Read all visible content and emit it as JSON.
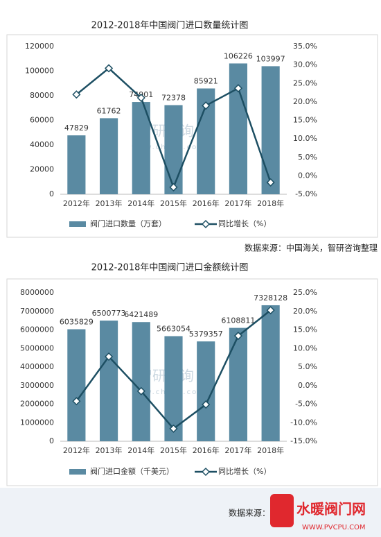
{
  "chart_data": [
    {
      "type": "combo",
      "title": "2012-2018年中国阀门进口数量统计图",
      "categories": [
        "2012年",
        "2013年",
        "2014年",
        "2015年",
        "2016年",
        "2017年",
        "2018年"
      ],
      "series": [
        {
          "name": "阀门进口数量（万套）",
          "type": "bar",
          "color": "#5a8aa2",
          "values": [
            47829,
            61762,
            74901,
            72378,
            85921,
            106226,
            103997
          ]
        },
        {
          "name": "同比增长（%）",
          "type": "line",
          "axis": "y2",
          "color": "#1d4f63",
          "values": [
            22.0,
            29.1,
            21.1,
            -3.1,
            19.0,
            23.7,
            -1.8
          ]
        }
      ],
      "ylim": [
        0,
        120000
      ],
      "yticks": [
        0,
        20000,
        40000,
        60000,
        80000,
        100000,
        120000
      ],
      "y2lim": [
        -5,
        35
      ],
      "y2ticks": [
        {
          "value": -5,
          "label": "-5.0%"
        },
        {
          "value": 0,
          "label": "0.0%"
        },
        {
          "value": 5,
          "label": "5.0%"
        },
        {
          "value": 10,
          "label": "10.0%"
        },
        {
          "value": 15,
          "label": "15.0%"
        },
        {
          "value": 20,
          "label": "20.0%"
        },
        {
          "value": 25,
          "label": "25.0%"
        },
        {
          "value": 30,
          "label": "30.0%"
        },
        {
          "value": 35,
          "label": "35.0%"
        }
      ],
      "grid": false,
      "legend": "bottom",
      "source": "数据来源：中国海关，智研咨询整理"
    },
    {
      "type": "combo",
      "title": "2012-2018年中国阀门进口金额统计图",
      "categories": [
        "2012年",
        "2013年",
        "2014年",
        "2015年",
        "2016年",
        "2017年",
        "2018年"
      ],
      "series": [
        {
          "name": "阀门进口金额（千美元）",
          "type": "bar",
          "color": "#5a8aa2",
          "values": [
            6035829,
            6500773,
            6421489,
            5663054,
            5379357,
            6108811,
            7328128
          ]
        },
        {
          "name": "同比增长（%）",
          "type": "line",
          "axis": "y2",
          "color": "#1d4f63",
          "values": [
            -4.2,
            7.8,
            -1.5,
            -11.6,
            -5.1,
            13.4,
            20.3
          ]
        }
      ],
      "ylim": [
        0,
        8000000
      ],
      "yticks": [
        0,
        1000000,
        2000000,
        3000000,
        4000000,
        5000000,
        6000000,
        7000000,
        8000000
      ],
      "y2lim": [
        -15,
        25
      ],
      "y2ticks": [
        {
          "value": -15,
          "label": "-15.0%"
        },
        {
          "value": -10,
          "label": "-10.0%"
        },
        {
          "value": -5,
          "label": "-5.0%"
        },
        {
          "value": 0,
          "label": "0.0%"
        },
        {
          "value": 5,
          "label": "5.0%"
        },
        {
          "value": 10,
          "label": "10.0%"
        },
        {
          "value": 15,
          "label": "15.0%"
        },
        {
          "value": 20,
          "label": "20.0%"
        },
        {
          "value": 25,
          "label": "25.0%"
        }
      ],
      "grid": false,
      "legend": "bottom",
      "source": "数据来源："
    }
  ],
  "watermark": {
    "brand": "智研咨询",
    "url": "www.chyxx.com",
    "site": "水暖阀门网",
    "site_url": "WWW.PVCPU.COM"
  }
}
